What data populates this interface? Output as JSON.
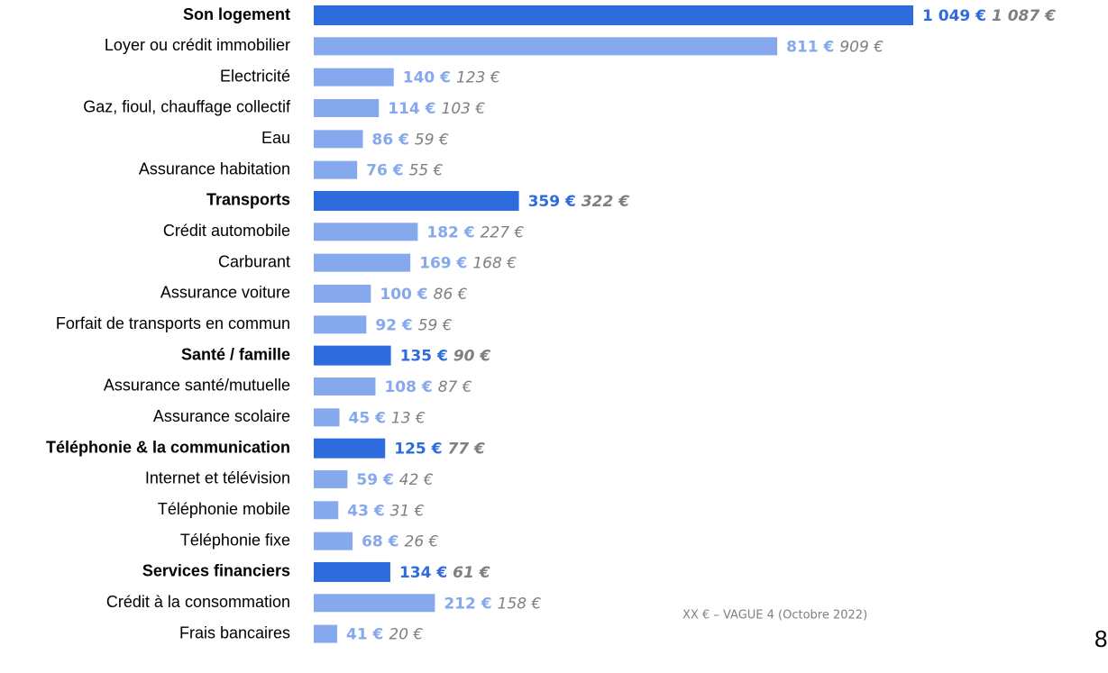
{
  "chart_data": {
    "type": "bar",
    "orientation": "horizontal",
    "categories": [
      "Son logement",
      "Loyer ou crédit immobilier",
      "Electricité",
      "Gaz, fioul, chauffage collectif",
      "Eau",
      "Assurance habitation",
      "Transports",
      "Crédit automobile",
      "Carburant",
      "Assurance voiture",
      "Forfait de transports en commun",
      "Santé / famille",
      "Assurance santé/mutuelle",
      "Assurance scolaire",
      "Téléphonie & la communication",
      "Internet et télévision",
      "Téléphonie mobile",
      "Téléphonie fixe",
      "Services financiers",
      "Crédit à la consommation",
      "Frais bancaires"
    ],
    "highlight": [
      true,
      false,
      false,
      false,
      false,
      false,
      true,
      false,
      false,
      false,
      false,
      true,
      false,
      false,
      true,
      false,
      false,
      false,
      true,
      false,
      false
    ],
    "highlight_color": "#2e6bdc",
    "color": "#86a8ec",
    "series": [
      {
        "values": [
          1049,
          811,
          140,
          114,
          86,
          76,
          359,
          182,
          169,
          100,
          92,
          135,
          108,
          45,
          125,
          59,
          43,
          68,
          134,
          212,
          41
        ],
        "value_labels": [
          "1 049 €",
          "811 €",
          "140 €",
          "114 €",
          "86 €",
          "76 €",
          "359 €",
          "182 €",
          "169 €",
          "100 €",
          "92 €",
          "135 €",
          "108 €",
          "45 €",
          "125 €",
          "59 €",
          "43 €",
          "68 €",
          "134 €",
          "212 €",
          "41 €"
        ]
      },
      {
        "color": "#7f7f7f",
        "values": [
          1087,
          909,
          123,
          103,
          59,
          55,
          322,
          227,
          168,
          86,
          59,
          90,
          87,
          13,
          77,
          42,
          31,
          26,
          61,
          158,
          20
        ],
        "value_labels": [
          "1 087 €",
          "909 €",
          "123 €",
          "103 €",
          "59 €",
          "55 €",
          "322 €",
          "227 €",
          "168 €",
          "86 €",
          "59 €",
          "90 €",
          "87 €",
          "13 €",
          "77 €",
          "42 €",
          "31 €",
          "26 €",
          "61 €",
          "158 €",
          "20 €"
        ]
      }
    ],
    "footnote": "XX € – VAGUE 4 (Octobre 2022)",
    "page_number": "8"
  }
}
